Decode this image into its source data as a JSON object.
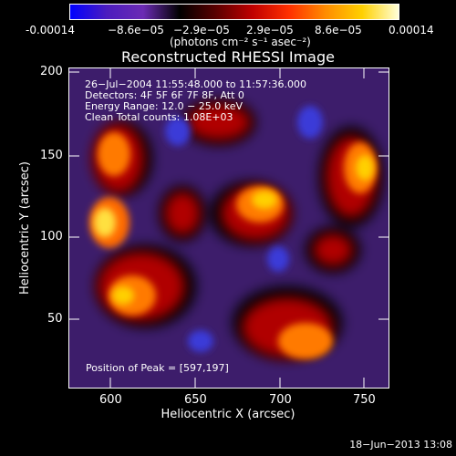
{
  "colorbar": {
    "ticks": [
      "-0.00014",
      "−8.6e−05",
      "−2.9e−05",
      "2.9e−05",
      "8.6e−05",
      "0.00014"
    ],
    "units": "(photons cm⁻² s⁻¹ asec⁻²)",
    "gradient_stops": [
      "#0000ff",
      "#4b1cbe",
      "#6b2bb4",
      "#000000",
      "#5a0000",
      "#c00000",
      "#ff3000",
      "#ff8c00",
      "#ffd000",
      "#ffffd8"
    ]
  },
  "image": {
    "title": "Reconstructed RHESSI Image",
    "info_lines": [
      "26−Jul−2004 11:55:48.000 to 11:57:36.000",
      "Detectors: 4F 5F 6F 7F 8F, Att 0",
      "Energy Range: 12.0 − 25.0 keV",
      "Clean    Total counts: 1.08E+03"
    ],
    "peak_label": "Position of Peak = [597,197]",
    "x_axis": {
      "label": "Heliocentric X (arcsec)",
      "ticks": [
        "600",
        "650",
        "700",
        "750"
      ],
      "range": [
        575,
        765
      ]
    },
    "y_axis": {
      "label": "Heliocentric Y (arcsec)",
      "ticks": [
        "50",
        "100",
        "150",
        "200"
      ],
      "range": [
        8,
        201
      ]
    },
    "colors": {
      "background": "#3d1d6b",
      "frame": "#ffffff"
    }
  },
  "footer": {
    "timestamp": "18−Jun−2013 13:08"
  }
}
